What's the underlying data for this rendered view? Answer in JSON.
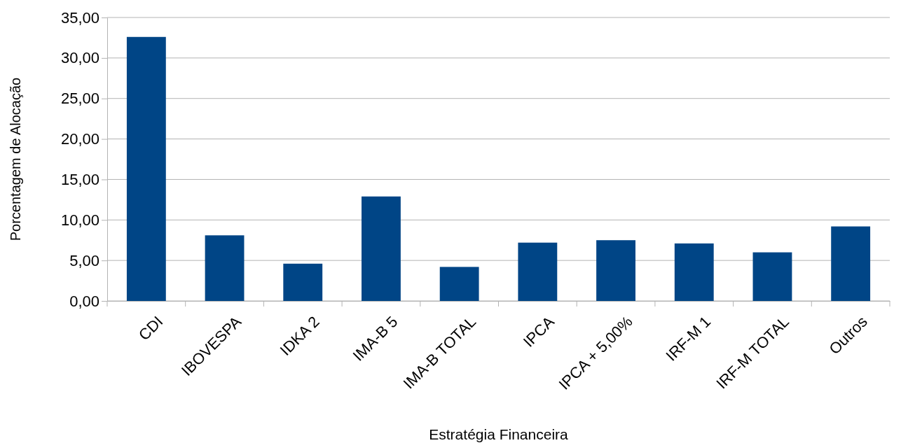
{
  "chart_data": {
    "type": "bar",
    "xlabel": "Estratégia Financeira",
    "ylabel": "Porcentagem de Alocação",
    "categories": [
      "CDI",
      "IBOVESPA",
      "IDKA 2",
      "IMA-B 5",
      "IMA-B TOTAL",
      "IPCA",
      "IPCA + 5,00%",
      "IRF-M 1",
      "IRF-M TOTAL",
      "Outros"
    ],
    "values": [
      32.6,
      8.1,
      4.6,
      12.9,
      4.2,
      7.2,
      7.5,
      7.1,
      6.0,
      9.2
    ],
    "color": "#004586",
    "ylim": [
      0,
      35
    ],
    "yticks": [
      {
        "value": 0,
        "label": "0,00"
      },
      {
        "value": 5,
        "label": "5,00"
      },
      {
        "value": 10,
        "label": "10,00"
      },
      {
        "value": 15,
        "label": "15,00"
      },
      {
        "value": 20,
        "label": "20,00"
      },
      {
        "value": 25,
        "label": "25,00"
      },
      {
        "value": 30,
        "label": "30,00"
      },
      {
        "value": 35,
        "label": "35,00"
      }
    ],
    "grid": "y"
  }
}
